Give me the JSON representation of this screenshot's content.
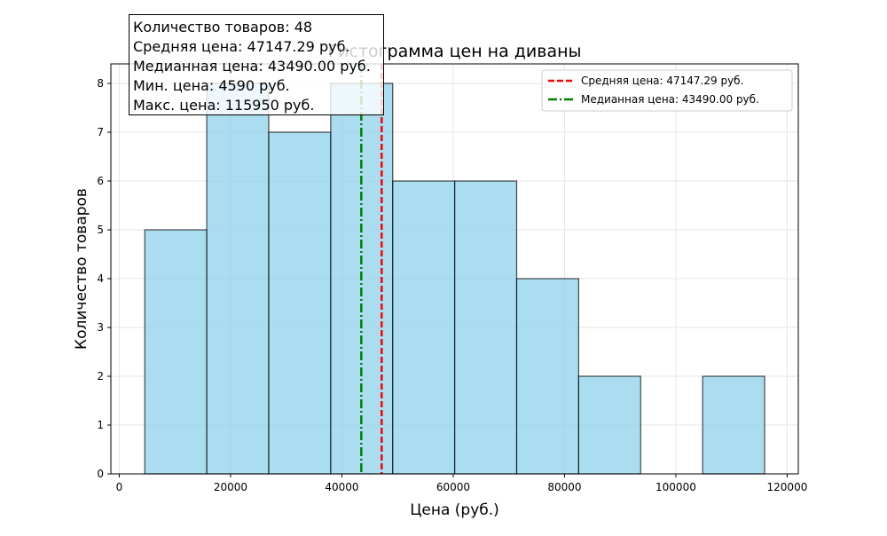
{
  "chart_data": {
    "type": "bar",
    "title": "Гистограмма цен на диваны",
    "xlabel": "Цена (руб.)",
    "ylabel": "Количество товаров",
    "bins": [
      {
        "x0": 4590,
        "x1": 15726,
        "count": 5
      },
      {
        "x0": 15726,
        "x1": 26862,
        "count": 8
      },
      {
        "x0": 26862,
        "x1": 37998,
        "count": 7
      },
      {
        "x0": 37998,
        "x1": 49134,
        "count": 8
      },
      {
        "x0": 49134,
        "x1": 60270,
        "count": 6
      },
      {
        "x0": 60270,
        "x1": 71406,
        "count": 6
      },
      {
        "x0": 71406,
        "x1": 82542,
        "count": 4
      },
      {
        "x0": 82542,
        "x1": 93678,
        "count": 2
      },
      {
        "x0": 93678,
        "x1": 104814,
        "count": 0
      },
      {
        "x0": 104814,
        "x1": 115950,
        "count": 2
      }
    ],
    "xlim": [
      -1500,
      122000
    ],
    "ylim": [
      0,
      8.4
    ],
    "xticks": [
      0,
      20000,
      40000,
      60000,
      80000,
      100000,
      120000
    ],
    "yticks": [
      0,
      1,
      2,
      3,
      4,
      5,
      6,
      7,
      8
    ],
    "grid": true,
    "legend_position": "top-right",
    "reference_lines": [
      {
        "name": "Средняя цена: 47147.29 руб.",
        "x": 47147.29,
        "color": "#ff0000",
        "style": "dashed"
      },
      {
        "name": "Медианная цена: 43490.00 руб.",
        "x": 43490.0,
        "color": "#008000",
        "style": "dashdot"
      }
    ],
    "colors": {
      "bar_fill": "#87ceeb",
      "bar_edge": "#000000"
    },
    "stats_box": [
      "Количество товаров: 48",
      "Средняя цена: 47147.29 руб.",
      "Медианная цена: 43490.00 руб.",
      "Мин. цена: 4590 руб.",
      "Макс. цена: 115950 руб."
    ]
  }
}
